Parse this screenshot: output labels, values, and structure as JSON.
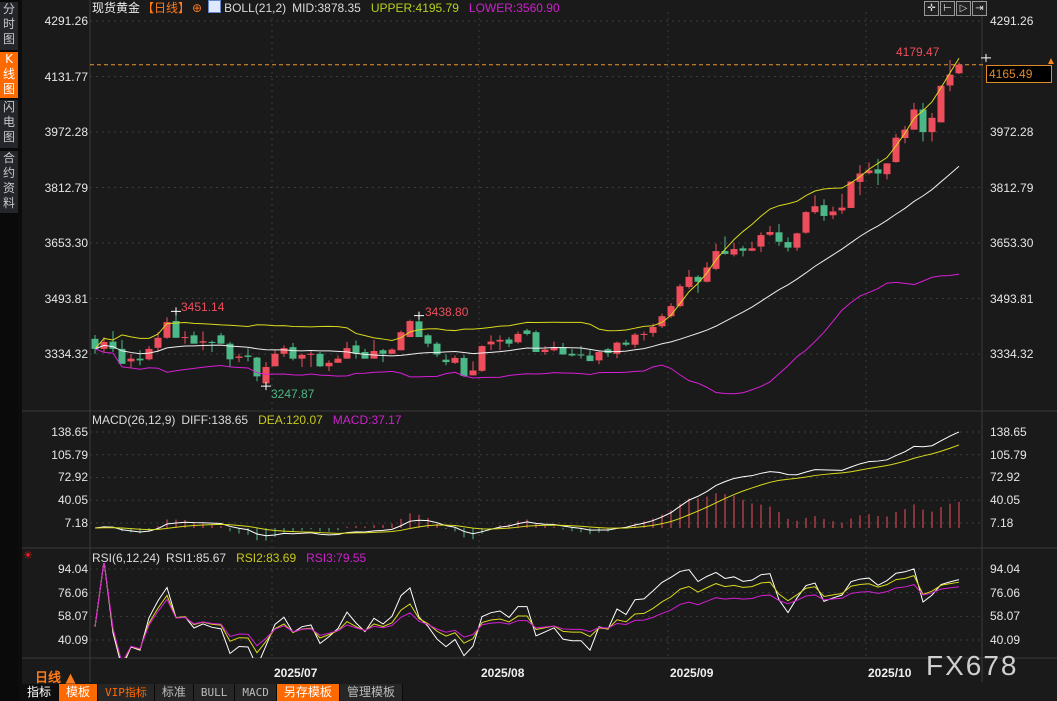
{
  "sidebar": {
    "tabs": [
      {
        "label": "分\n时\n图",
        "active": false
      },
      {
        "label": "K\n线\n图",
        "active": true
      },
      {
        "label": "闪\n电\n图",
        "active": false
      },
      {
        "label": "合\n约\n资\n料",
        "active": false
      }
    ]
  },
  "header": {
    "instrument": "现货黄金",
    "period": "【日线】",
    "boll_name": "BOLL(21,2)",
    "mid": "MID:3878.35",
    "upper": "UPPER:4195.79",
    "lower": "LOWER:3560.90"
  },
  "macd_header": {
    "name": "MACD(26,12,9)",
    "diff": "DIFF:138.65",
    "dea": "DEA:120.07",
    "macd": "MACD:37.17"
  },
  "rsi_header": {
    "name": "RSI(6,12,24)",
    "rsi1": "RSI1:85.67",
    "rsi2": "RSI2:83.69",
    "rsi3": "RSI3:79.55"
  },
  "current_price": "4165.49",
  "max_label": "4179.47",
  "left_high_label": "3451.14",
  "mid_high_label": "3438.80",
  "low_label": "3247.87",
  "period_selector": "日线 ▲",
  "watermark": "FX678",
  "toolbar": [
    "指标",
    "模板",
    "VIP指标",
    "标准",
    "BULL",
    "MACD",
    "另存模板",
    "管理模板"
  ],
  "colors": {
    "up": "#ee4e5c",
    "down": "#4db887",
    "upper": "#d9d91e",
    "mid": "#eeeeee",
    "lower": "#d61fd6",
    "accent": "#ff6a00"
  },
  "chart_data": [
    {
      "type": "candlestick",
      "title": "现货黄金 日线",
      "indicator": "BOLL(21,2)",
      "yticks": [
        "4291.26",
        "4131.77",
        "3972.28",
        "3812.79",
        "3653.30",
        "3493.81",
        "3334.32"
      ],
      "ylim": [
        3240,
        4291.26
      ],
      "xticks": [
        {
          "label": "2025/07",
          "index": 20
        },
        {
          "label": "2025/08",
          "index": 43
        },
        {
          "label": "2025/09",
          "index": 64
        },
        {
          "label": "2025/10",
          "index": 86
        }
      ],
      "grid": true,
      "ohlc": [
        [
          3378,
          3389,
          3335,
          3349
        ],
        [
          3349,
          3383,
          3340,
          3369
        ],
        [
          3370,
          3400,
          3340,
          3349
        ],
        [
          3349,
          3375,
          3306,
          3306
        ],
        [
          3313,
          3335,
          3294,
          3321
        ],
        [
          3321,
          3345,
          3302,
          3316
        ],
        [
          3319,
          3357,
          3316,
          3349
        ],
        [
          3352,
          3397,
          3340,
          3381
        ],
        [
          3381,
          3440,
          3378,
          3426
        ],
        [
          3429,
          3451.14,
          3381,
          3381
        ],
        [
          3381,
          3400,
          3364,
          3383
        ],
        [
          3388,
          3399,
          3364,
          3364
        ],
        [
          3367,
          3399,
          3345,
          3371
        ],
        [
          3369,
          3373,
          3340,
          3366
        ],
        [
          3388,
          3395,
          3364,
          3364
        ],
        [
          3364,
          3369,
          3297,
          3319
        ],
        [
          3323,
          3335,
          3311,
          3327
        ],
        [
          3330,
          3351,
          3313,
          3326
        ],
        [
          3324,
          3326,
          3256,
          3270
        ],
        [
          3250,
          3311,
          3247.87,
          3297
        ],
        [
          3299,
          3345,
          3299,
          3335
        ],
        [
          3335,
          3359,
          3326,
          3351
        ],
        [
          3354,
          3366,
          3316,
          3321
        ],
        [
          3321,
          3335,
          3297,
          3332
        ],
        [
          3332,
          3342,
          3297,
          3335
        ],
        [
          3335,
          3340,
          3297,
          3299
        ],
        [
          3299,
          3316,
          3285,
          3309
        ],
        [
          3309,
          3330,
          3309,
          3321
        ],
        [
          3321,
          3369,
          3321,
          3351
        ],
        [
          3359,
          3373,
          3321,
          3335
        ],
        [
          3340,
          3349,
          3321,
          3321
        ],
        [
          3321,
          3375,
          3321,
          3343
        ],
        [
          3345,
          3349,
          3311,
          3335
        ],
        [
          3335,
          3351,
          3335,
          3347
        ],
        [
          3345,
          3402,
          3345,
          3397
        ],
        [
          3383,
          3433,
          3383,
          3429
        ],
        [
          3428,
          3438.8,
          3383,
          3383
        ],
        [
          3388,
          3392,
          3354,
          3364
        ],
        [
          3364,
          3369,
          3326,
          3333
        ],
        [
          3318,
          3333,
          3302,
          3311
        ],
        [
          3309,
          3330,
          3306,
          3323
        ],
        [
          3323,
          3332,
          3268,
          3271
        ],
        [
          3273,
          3313,
          3273,
          3287
        ],
        [
          3286,
          3359,
          3283,
          3357
        ],
        [
          3362,
          3388,
          3345,
          3370
        ],
        [
          3370,
          3388,
          3345,
          3375
        ],
        [
          3376,
          3383,
          3354,
          3364
        ],
        [
          3368,
          3399,
          3364,
          3392
        ],
        [
          3402,
          3407,
          3388,
          3392
        ],
        [
          3397,
          3402,
          3340,
          3340
        ],
        [
          3340,
          3357,
          3332,
          3347
        ],
        [
          3345,
          3370,
          3342,
          3354
        ],
        [
          3354,
          3366,
          3332,
          3333
        ],
        [
          3335,
          3349,
          3327,
          3330
        ],
        [
          3333,
          3357,
          3321,
          3330
        ],
        [
          3330,
          3345,
          3314,
          3314
        ],
        [
          3316,
          3345,
          3305,
          3340
        ],
        [
          3348,
          3352,
          3326,
          3337
        ],
        [
          3335,
          3370,
          3322,
          3367
        ],
        [
          3367,
          3375,
          3357,
          3361
        ],
        [
          3361,
          3395,
          3352,
          3390
        ],
        [
          3390,
          3399,
          3373,
          3392
        ],
        [
          3395,
          3422,
          3384,
          3412
        ],
        [
          3414,
          3450,
          3409,
          3443
        ],
        [
          3443,
          3480,
          3438,
          3472
        ],
        [
          3472,
          3535,
          3468,
          3529
        ],
        [
          3527,
          3576,
          3522,
          3556
        ],
        [
          3556,
          3561,
          3510,
          3542
        ],
        [
          3542,
          3598,
          3540,
          3583
        ],
        [
          3579,
          3651,
          3575,
          3630
        ],
        [
          3630,
          3672,
          3620,
          3622
        ],
        [
          3620,
          3654,
          3615,
          3636
        ],
        [
          3638,
          3645,
          3615,
          3631
        ],
        [
          3631,
          3657,
          3630,
          3638
        ],
        [
          3643,
          3684,
          3627,
          3676
        ],
        [
          3677,
          3702,
          3673,
          3685
        ],
        [
          3684,
          3708,
          3645,
          3657
        ],
        [
          3656,
          3669,
          3629,
          3640
        ],
        [
          3640,
          3683,
          3631,
          3681
        ],
        [
          3683,
          3745,
          3680,
          3742
        ],
        [
          3742,
          3790,
          3737,
          3759
        ],
        [
          3762,
          3779,
          3717,
          3731
        ],
        [
          3733,
          3758,
          3722,
          3744
        ],
        [
          3747,
          3795,
          3737,
          3755
        ],
        [
          3754,
          3830,
          3754,
          3830
        ],
        [
          3829,
          3877,
          3791,
          3853
        ],
        [
          3854,
          3885,
          3850,
          3862
        ],
        [
          3865,
          3895,
          3820,
          3853
        ],
        [
          3851,
          3883,
          3836,
          3882
        ],
        [
          3886,
          3967,
          3884,
          3956
        ],
        [
          3955,
          3990,
          3940,
          3979
        ],
        [
          3979,
          4056,
          3979,
          4037
        ],
        [
          4037,
          4056,
          3945,
          3972
        ],
        [
          3972,
          4027,
          3945,
          4013
        ],
        [
          4000,
          4106,
          4000,
          4105
        ],
        [
          4106,
          4179.47,
          4089,
          4137
        ],
        [
          4141,
          4172,
          4139,
          4165.49
        ]
      ]
    },
    {
      "type": "line",
      "title": "MACD(26,12,9)",
      "yticks": [
        "138.65",
        "105.79",
        "72.92",
        "40.05",
        "7.18"
      ],
      "last": {
        "DIFF": 138.65,
        "DEA": 120.07,
        "MACD": 37.17
      }
    },
    {
      "type": "line",
      "title": "RSI(6,12,24)",
      "yticks": [
        "94.04",
        "76.06",
        "58.07",
        "40.09"
      ],
      "last": {
        "RSI1": 85.67,
        "RSI2": 83.69,
        "RSI3": 79.55
      }
    }
  ]
}
